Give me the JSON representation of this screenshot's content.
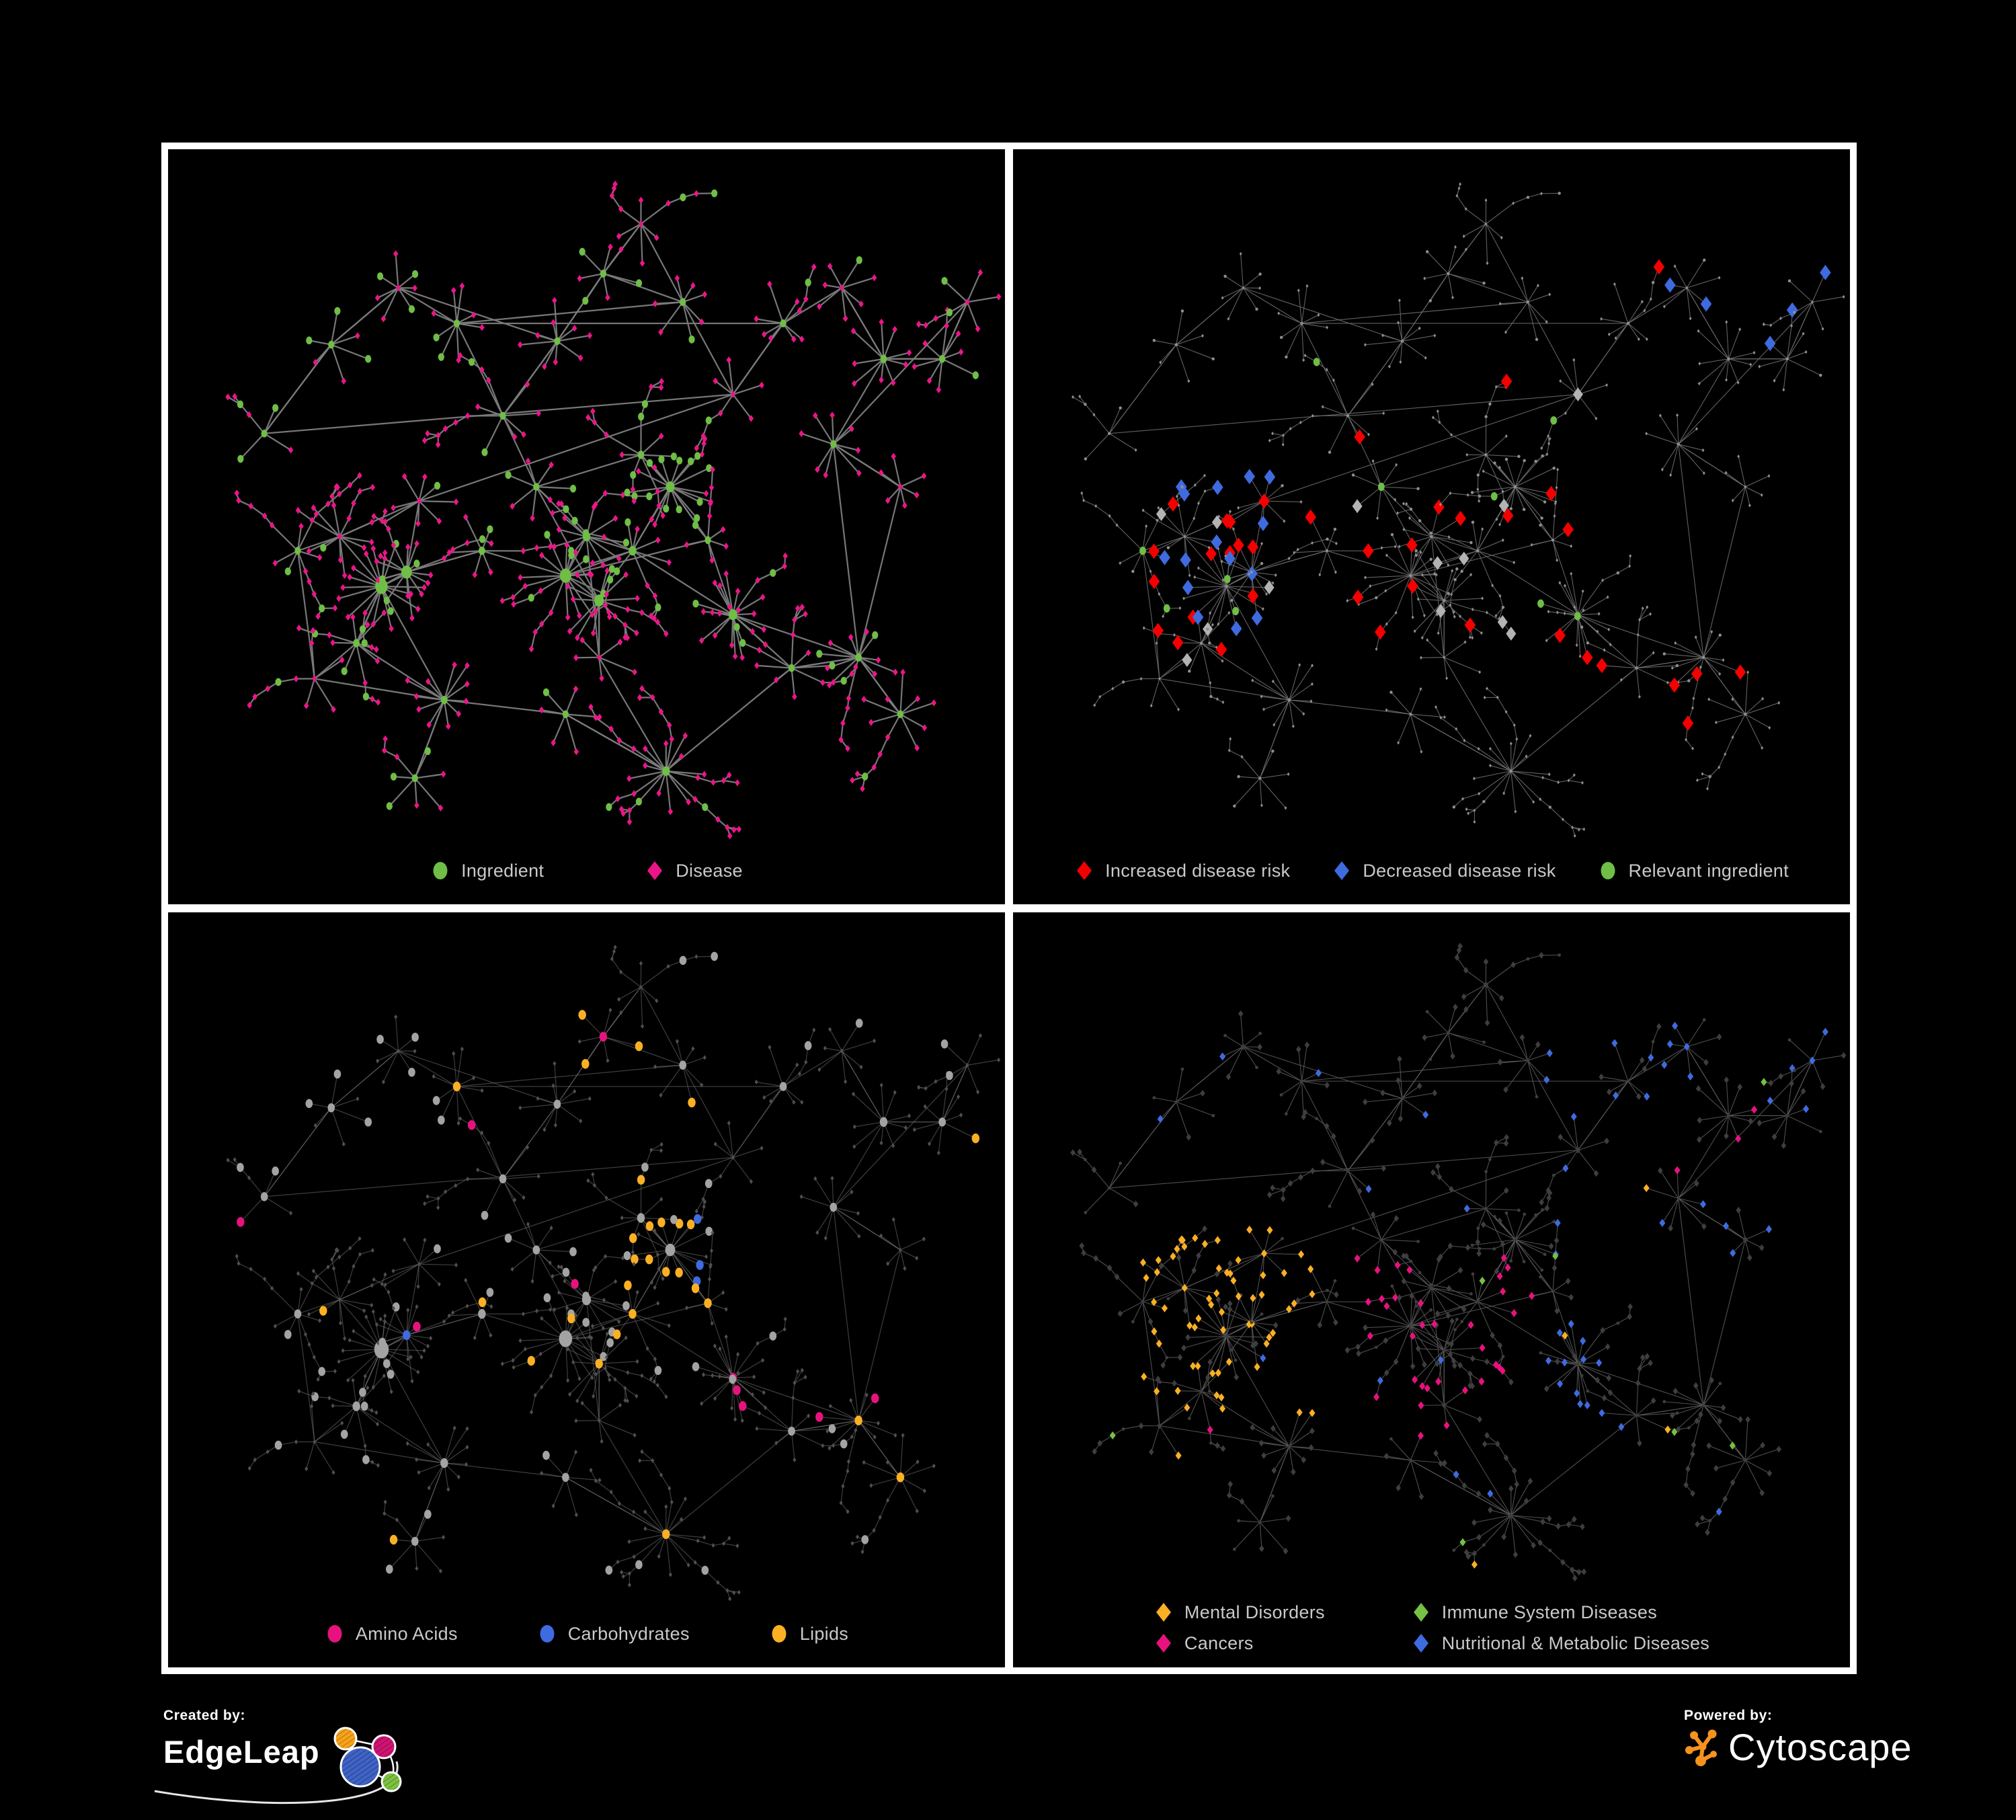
{
  "panels": [
    {
      "id": "ingredient-disease-network",
      "legend": [
        {
          "label": "Ingredient",
          "shape": "ellipse",
          "color": "#6fbe45"
        },
        {
          "label": "Disease",
          "shape": "diamond",
          "color": "#ec1588"
        }
      ],
      "style": {
        "edge": {
          "color": "#7c7c7c",
          "width": 2.2,
          "opacity": 0.95
        }
      },
      "rules": [
        {
          "type": "i",
          "p": 1,
          "shape": "e",
          "color": "#6fbe45",
          "sz": 5.6,
          "scaleHub": true
        },
        {
          "type": "d",
          "p": 1,
          "shape": "d",
          "color": "#ec1588",
          "sz": 5,
          "scaleHub": true
        }
      ]
    },
    {
      "id": "disease-risk-network",
      "legend": [
        {
          "label": "Increased disease risk",
          "shape": "diamond",
          "color": "#f40000"
        },
        {
          "label": "Decreased disease risk",
          "shape": "diamond",
          "color": "#3f6be0"
        },
        {
          "label": "Relevant ingredient",
          "shape": "ellipse",
          "color": "#6fbe45"
        }
      ],
      "style": {
        "edge": {
          "color": "#6a6a6a",
          "width": 1.1,
          "opacity": 0.9
        }
      },
      "rules": [
        {
          "type": "d",
          "region": [
            0.78,
            0.1,
            1.0,
            0.3
          ],
          "p": 0.2,
          "shape": "d",
          "color": "#3f6be0",
          "sz": 11
        },
        {
          "type": "d",
          "region": [
            0.16,
            0.44,
            0.36,
            0.72
          ],
          "p": 0.15,
          "shape": "d",
          "color": "#f40000",
          "sz": 11
        },
        {
          "type": "d",
          "region": [
            0.16,
            0.44,
            0.36,
            0.72
          ],
          "p": 0.2,
          "shape": "d",
          "color": "#3f6be0",
          "sz": 11
        },
        {
          "type": "d",
          "region": [
            0.16,
            0.44,
            0.36,
            0.72
          ],
          "p": 0.08,
          "shape": "d",
          "color": "#b3b3b3",
          "sz": 10
        },
        {
          "type": "d",
          "region": [
            0.4,
            0.3,
            0.7,
            0.75
          ],
          "p": 0.15,
          "shape": "d",
          "color": "#f40000",
          "sz": 11
        },
        {
          "type": "d",
          "region": [
            0.4,
            0.3,
            0.7,
            0.75
          ],
          "p": 0.05,
          "shape": "d",
          "color": "#b3b3b3",
          "sz": 10
        },
        {
          "type": "d",
          "region": [
            0.68,
            0.7,
            0.9,
            0.9
          ],
          "p": 0.09,
          "shape": "d",
          "color": "#f40000",
          "sz": 11
        },
        {
          "type": "d",
          "region": [
            0.55,
            0.1,
            0.78,
            0.32
          ],
          "p": 0.05,
          "shape": "d",
          "color": "#f40000",
          "sz": 11
        },
        {
          "type": "i",
          "region": [
            0.15,
            0.28,
            0.75,
            0.78
          ],
          "p": 0.13,
          "shape": "e",
          "color": "#6fbe45",
          "sz": 6
        },
        {
          "type": "i",
          "p": 0.03,
          "shape": "e",
          "color": "#6fbe45",
          "sz": 6
        },
        {
          "type": "i",
          "p": 1,
          "shape": "c",
          "color": "#8f8f8f",
          "sz": 2.2
        },
        {
          "type": "d",
          "p": 1,
          "shape": "d",
          "color": "#8f8f8f",
          "sz": 2.6
        }
      ]
    },
    {
      "id": "nutrient-class-network",
      "legend": [
        {
          "label": "Amino Acids",
          "shape": "ellipse",
          "color": "#e8127f"
        },
        {
          "label": "Carbohydrates",
          "shape": "ellipse",
          "color": "#3f6be0"
        },
        {
          "label": "Lipids",
          "shape": "ellipse",
          "color": "#fbb024"
        }
      ],
      "style": {
        "edge": {
          "color": "#7a7a7a",
          "width": 1.2,
          "opacity": 0.5
        }
      },
      "rules": [
        {
          "type": "i",
          "region": [
            0.52,
            0.36,
            0.68,
            0.56
          ],
          "p": 0.5,
          "shape": "e",
          "color": "#fbb024",
          "sz": 7
        },
        {
          "type": "i",
          "region": [
            0.52,
            0.36,
            0.68,
            0.56
          ],
          "p": 0.38,
          "shape": "e",
          "color": "#3f6be0",
          "sz": 7
        },
        {
          "type": "i",
          "region": [
            0.3,
            0.1,
            0.62,
            0.34
          ],
          "p": 0.28,
          "shape": "e",
          "color": "#fbb024",
          "sz": 7
        },
        {
          "type": "i",
          "region": [
            0.4,
            0.52,
            0.62,
            0.74
          ],
          "p": 0.24,
          "shape": "e",
          "color": "#fbb024",
          "sz": 7
        },
        {
          "type": "i",
          "region": [
            0.6,
            0.6,
            0.96,
            0.96
          ],
          "p": 0.22,
          "shape": "e",
          "color": "#e8127f",
          "sz": 7
        },
        {
          "type": "i",
          "p": 0.08,
          "shape": "e",
          "color": "#fbb024",
          "sz": 7
        },
        {
          "type": "i",
          "p": 0.07,
          "shape": "e",
          "color": "#e8127f",
          "sz": 7
        },
        {
          "type": "i",
          "p": 0.025,
          "shape": "e",
          "color": "#3f6be0",
          "sz": 7
        },
        {
          "type": "i",
          "p": 1,
          "shape": "e",
          "color": "#a3a3a3",
          "sz": 6.5,
          "scaleHub": true
        },
        {
          "type": "d",
          "p": 1,
          "shape": "d",
          "color": "#4f4f4f",
          "sz": 3.4
        }
      ]
    },
    {
      "id": "disease-category-network",
      "legend": [
        {
          "label": "Mental Disorders",
          "shape": "diamond",
          "color": "#fbb024"
        },
        {
          "label": "Immune System Diseases",
          "shape": "diamond",
          "color": "#76c043"
        },
        {
          "label": "Cancers",
          "shape": "diamond",
          "color": "#e8127f"
        },
        {
          "label": "Nutritional & Metabolic Diseases",
          "shape": "diamond",
          "color": "#3f6be0"
        }
      ],
      "style": {
        "edge": {
          "color": "#5c5c5c",
          "width": 1.1,
          "opacity": 0.85
        }
      },
      "rules": [
        {
          "type": "d",
          "region": [
            0.13,
            0.46,
            0.36,
            0.74
          ],
          "p": 0.72,
          "shape": "d",
          "color": "#fbb024",
          "sz": 6
        },
        {
          "type": "d",
          "region": [
            0.4,
            0.5,
            0.62,
            0.76
          ],
          "p": 0.4,
          "shape": "d",
          "color": "#e8127f",
          "sz": 6
        },
        {
          "type": "d",
          "region": [
            0.58,
            0.58,
            0.74,
            0.78
          ],
          "p": 0.45,
          "shape": "d",
          "color": "#3f6be0",
          "sz": 6
        },
        {
          "type": "d",
          "region": [
            0.86,
            0.24,
            1.0,
            0.42
          ],
          "p": 0.35,
          "shape": "d",
          "color": "#e8127f",
          "sz": 6
        },
        {
          "type": "d",
          "region": [
            0.6,
            0.04,
            1.0,
            0.5
          ],
          "p": 0.3,
          "shape": "d",
          "color": "#3f6be0",
          "sz": 6
        },
        {
          "type": "d",
          "region": [
            0.05,
            0.05,
            0.5,
            0.42
          ],
          "p": 0.1,
          "shape": "d",
          "color": "#3f6be0",
          "sz": 6
        },
        {
          "type": "d",
          "region": [
            0.05,
            0.05,
            0.5,
            0.42
          ],
          "p": 0.05,
          "shape": "d",
          "color": "#fbb024",
          "sz": 6
        },
        {
          "type": "d",
          "p": 0.035,
          "shape": "d",
          "color": "#3f6be0",
          "sz": 6
        },
        {
          "type": "d",
          "p": 0.03,
          "shape": "d",
          "color": "#e8127f",
          "sz": 6
        },
        {
          "type": "d",
          "p": 0.02,
          "shape": "d",
          "color": "#76c043",
          "sz": 6
        },
        {
          "type": "d",
          "p": 0.015,
          "shape": "d",
          "color": "#fbb024",
          "sz": 6
        },
        {
          "type": "d",
          "p": 1,
          "shape": "d",
          "color": "#3e3e3e",
          "sz": 5
        },
        {
          "type": "i",
          "p": 1,
          "shape": "c",
          "color": "#3e3e3e",
          "sz": 2.4
        }
      ]
    }
  ],
  "network": {
    "seed": 20240117,
    "branchProb": 0.14,
    "hubs": [
      [
        0.255,
        0.615,
        20,
        "i",
        13,
        0.15
      ],
      [
        0.285,
        0.595,
        14,
        "i",
        11,
        0.15
      ],
      [
        0.205,
        0.545,
        11,
        "d",
        5,
        0.1
      ],
      [
        0.225,
        0.695,
        9,
        "i",
        7,
        0.15
      ],
      [
        0.155,
        0.565,
        7,
        "i",
        6,
        0.2
      ],
      [
        0.3,
        0.495,
        8,
        "d",
        5,
        0.15
      ],
      [
        0.375,
        0.565,
        6,
        "i",
        7,
        0.2
      ],
      [
        0.475,
        0.6,
        16,
        "i",
        12,
        0.2
      ],
      [
        0.515,
        0.635,
        12,
        "i",
        10,
        0.2
      ],
      [
        0.5,
        0.545,
        9,
        "i",
        8,
        0.25
      ],
      [
        0.555,
        0.565,
        8,
        "i",
        8,
        0.3
      ],
      [
        0.6,
        0.475,
        18,
        "i",
        9,
        0.72
      ],
      [
        0.565,
        0.43,
        7,
        "i",
        7,
        0.5
      ],
      [
        0.44,
        0.475,
        7,
        "i",
        6,
        0.2
      ],
      [
        0.4,
        0.375,
        8,
        "i",
        6,
        0.2
      ],
      [
        0.465,
        0.27,
        9,
        "i",
        6,
        0.25
      ],
      [
        0.52,
        0.175,
        7,
        "i",
        5,
        0.3
      ],
      [
        0.565,
        0.105,
        6,
        "d",
        4,
        0.2
      ],
      [
        0.615,
        0.215,
        7,
        "i",
        5,
        0.2
      ],
      [
        0.345,
        0.245,
        8,
        "i",
        5,
        0.2
      ],
      [
        0.275,
        0.195,
        7,
        "d",
        4,
        0.25
      ],
      [
        0.195,
        0.275,
        6,
        "i",
        5,
        0.2
      ],
      [
        0.115,
        0.4,
        4,
        "i",
        5,
        0.3
      ],
      [
        0.675,
        0.345,
        5,
        "d",
        4,
        0.2
      ],
      [
        0.735,
        0.245,
        8,
        "i",
        6,
        0.2
      ],
      [
        0.805,
        0.195,
        7,
        "d",
        4,
        0.25
      ],
      [
        0.855,
        0.295,
        9,
        "i",
        7,
        0.2
      ],
      [
        0.925,
        0.295,
        8,
        "i",
        6,
        0.2
      ],
      [
        0.955,
        0.215,
        5,
        "d",
        4,
        0.2
      ],
      [
        0.795,
        0.415,
        8,
        "i",
        6,
        0.2
      ],
      [
        0.875,
        0.475,
        6,
        "d",
        4,
        0.2
      ],
      [
        0.675,
        0.655,
        18,
        "i",
        9,
        0.12
      ],
      [
        0.745,
        0.73,
        8,
        "i",
        6,
        0.15
      ],
      [
        0.825,
        0.715,
        11,
        "i",
        7,
        0.15
      ],
      [
        0.875,
        0.795,
        9,
        "i",
        6,
        0.15
      ],
      [
        0.595,
        0.875,
        16,
        "i",
        8,
        0.1
      ],
      [
        0.475,
        0.795,
        6,
        "i",
        5,
        0.2
      ],
      [
        0.33,
        0.775,
        11,
        "i",
        7,
        0.15
      ],
      [
        0.295,
        0.885,
        7,
        "i",
        5,
        0.15
      ],
      [
        0.175,
        0.745,
        5,
        "d",
        4,
        0.2
      ],
      [
        0.515,
        0.715,
        5,
        "d",
        5,
        0.2
      ],
      [
        0.645,
        0.55,
        6,
        "i",
        6,
        0.3
      ]
    ],
    "extraEdges": [
      [
        7,
        10
      ],
      [
        10,
        11
      ],
      [
        11,
        12
      ],
      [
        12,
        13
      ],
      [
        8,
        13
      ],
      [
        15,
        16
      ],
      [
        27,
        28
      ],
      [
        31,
        33
      ],
      [
        35,
        36
      ],
      [
        0,
        37
      ],
      [
        11,
        41
      ],
      [
        23,
        24
      ],
      [
        29,
        30
      ],
      [
        9,
        40
      ],
      [
        33,
        29
      ],
      [
        2,
        5
      ],
      [
        16,
        17
      ],
      [
        19,
        24
      ],
      [
        26,
        27
      ],
      [
        28,
        29
      ],
      [
        32,
        33
      ],
      [
        34,
        33
      ],
      [
        37,
        38
      ],
      [
        4,
        39
      ],
      [
        8,
        40
      ],
      [
        25,
        26
      ],
      [
        17,
        18
      ],
      [
        0,
        3
      ],
      [
        1,
        6
      ],
      [
        20,
        21
      ],
      [
        21,
        22
      ],
      [
        22,
        23
      ],
      [
        15,
        20
      ],
      [
        18,
        19
      ],
      [
        30,
        33
      ],
      [
        40,
        35
      ],
      [
        36,
        37
      ],
      [
        41,
        31
      ],
      [
        23,
        5
      ],
      [
        39,
        37
      ],
      [
        14,
        15
      ],
      [
        7,
        41
      ]
    ]
  },
  "footer": {
    "created_by": "Created by:",
    "brand": "EdgeLeap",
    "powered_by": "Powered by:",
    "engine": "Cytoscape"
  },
  "colors": {
    "background": "#000000",
    "panel_frame": "#ffffff",
    "legend_text": "#c9c9c9",
    "ingredient_green": "#6fbe45",
    "disease_pink": "#ec1588",
    "risk_red": "#f40000",
    "risk_blue": "#3f6be0",
    "lipid_amber": "#fbb024",
    "immune_green": "#76c043",
    "cytoscape_orange": "#f6921e"
  }
}
